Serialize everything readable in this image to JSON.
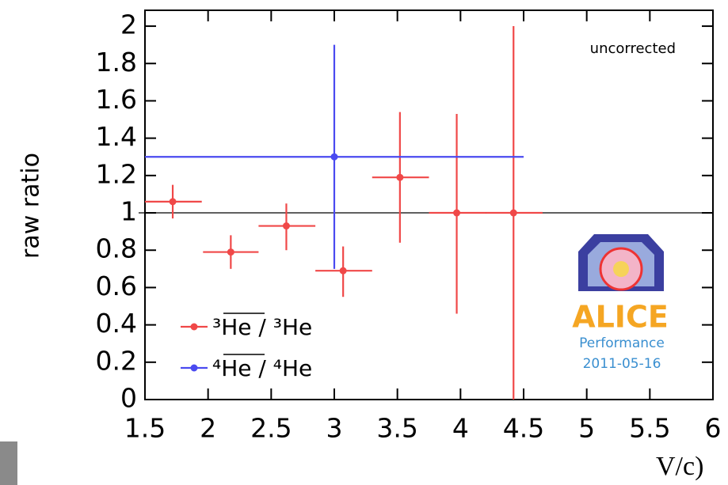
{
  "chart_data": {
    "type": "scatter",
    "y_label": "raw ratio",
    "x_label": "V/c)",
    "annotation": "uncorrected",
    "logo": {
      "name": "ALICE",
      "line1": "Performance",
      "line2": "2011-05-16"
    },
    "xlim": [
      1.5,
      6
    ],
    "ylim": [
      0,
      2.085
    ],
    "xticks": [
      1.5,
      2,
      2.5,
      3,
      3.5,
      4,
      4.5,
      5,
      5.5,
      6
    ],
    "yticks": [
      0,
      0.2,
      0.4,
      0.6,
      0.8,
      1,
      1.2,
      1.4,
      1.6,
      1.8,
      2
    ],
    "reference_line": 1,
    "series": [
      {
        "name": "³He / ³He",
        "color": "#f04848",
        "x": [
          1.72,
          2.18,
          2.62,
          3.07,
          3.52,
          3.97,
          4.42
        ],
        "x_low": [
          1.5,
          1.96,
          2.4,
          2.85,
          3.3,
          3.75,
          4.2
        ],
        "x_high": [
          1.95,
          2.4,
          2.85,
          3.3,
          3.75,
          4.2,
          4.65
        ],
        "values": [
          1.06,
          0.79,
          0.93,
          0.69,
          1.19,
          1.0,
          1.0
        ],
        "y_low": [
          0.97,
          0.7,
          0.8,
          0.55,
          0.84,
          0.46,
          0
        ],
        "y_high": [
          1.15,
          0.88,
          1.05,
          0.82,
          1.54,
          1.53,
          2.0
        ]
      },
      {
        "name": "⁴He / ⁴He",
        "color": "#4a4af0",
        "x": [
          3.0
        ],
        "x_low": [
          1.5
        ],
        "x_high": [
          4.5
        ],
        "values": [
          1.3
        ],
        "y_low": [
          0.7
        ],
        "y_high": [
          1.9
        ]
      }
    ]
  }
}
